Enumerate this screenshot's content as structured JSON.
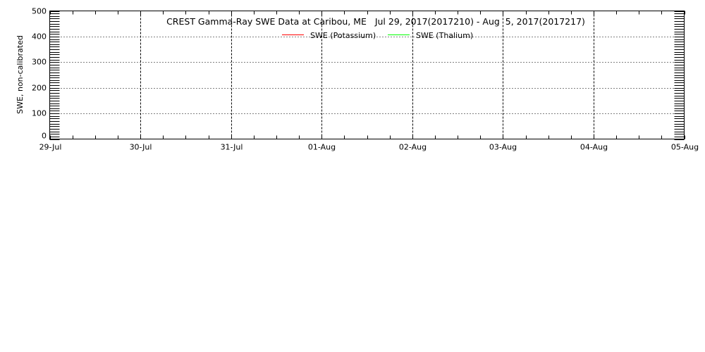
{
  "chart_data": {
    "type": "line",
    "title": "CREST Gamma-Ray SWE Data at Caribou, ME   Jul 29, 2017(2017210) - Aug  5, 2017(2017217)",
    "xlabel": "",
    "ylabel": "SWE, non-calibrated",
    "ylim": [
      0,
      500
    ],
    "yticks": [
      "0",
      "100",
      "200",
      "300",
      "400",
      "500"
    ],
    "xlim": [
      "2017-07-29",
      "2017-08-05"
    ],
    "xticks": [
      "29-Jul",
      "30-Jul",
      "31-Jul",
      "01-Aug",
      "02-Aug",
      "03-Aug",
      "04-Aug",
      "05-Aug"
    ],
    "grid": true,
    "legend_position": "top-center",
    "series": [
      {
        "name": "SWE (Potassium)",
        "color": "#ff0000",
        "values": []
      },
      {
        "name": "SWE (Thalium)",
        "color": "#00ff00",
        "values": []
      }
    ]
  }
}
